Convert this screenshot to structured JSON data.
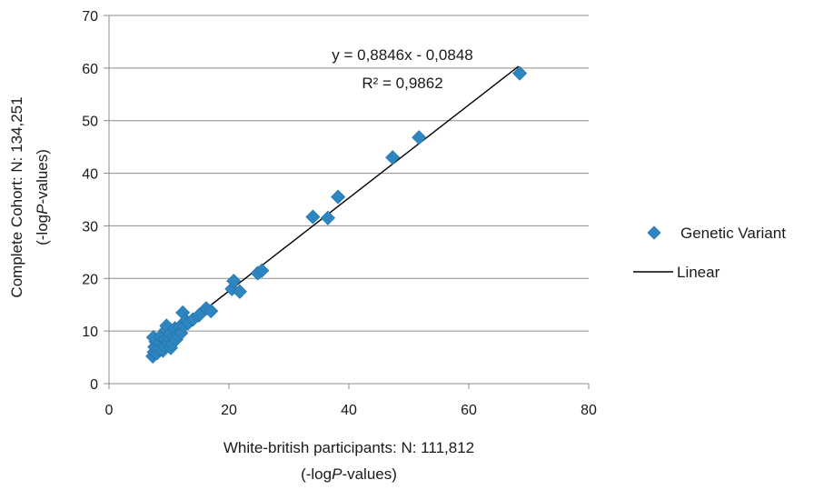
{
  "chart_data": {
    "type": "scatter",
    "xlabel_line1": "White-british participants: N: 111,812",
    "xlabel_line2_pre": "(-log",
    "xlabel_line2_italic": "P",
    "xlabel_line2_post": "-values)",
    "ylabel_line1": "Complete Cohort: N: 134,251",
    "ylabel_line2_pre": "(-log",
    "ylabel_line2_italic": "P",
    "ylabel_line2_post": "-values)",
    "xlim": [
      0,
      80
    ],
    "ylim": [
      0,
      70
    ],
    "xticks": [
      "0",
      "20",
      "40",
      "60",
      "80"
    ],
    "yticks": [
      "0",
      "10",
      "20",
      "30",
      "40",
      "50",
      "60",
      "70"
    ],
    "grid": "horizontal",
    "legend_position": "right",
    "series": [
      {
        "name": "Genetic Variant",
        "color": "#2e86c1",
        "marker": "diamond",
        "points": [
          [
            7.3,
            5.2
          ],
          [
            7.5,
            6.0
          ],
          [
            7.6,
            7.0
          ],
          [
            7.8,
            8.0
          ],
          [
            7.4,
            8.8
          ],
          [
            8.0,
            5.8
          ],
          [
            8.2,
            6.5
          ],
          [
            8.5,
            7.8
          ],
          [
            8.6,
            9.0
          ],
          [
            9.0,
            6.3
          ],
          [
            9.2,
            7.2
          ],
          [
            9.3,
            8.5
          ],
          [
            9.5,
            10.2
          ],
          [
            9.6,
            11.0
          ],
          [
            9.8,
            7.5
          ],
          [
            10.0,
            8.8
          ],
          [
            10.2,
            9.5
          ],
          [
            10.3,
            6.8
          ],
          [
            10.5,
            7.6
          ],
          [
            10.8,
            9.0
          ],
          [
            11.0,
            10.5
          ],
          [
            11.2,
            8.4
          ],
          [
            11.5,
            9.3
          ],
          [
            11.8,
            10.8
          ],
          [
            12.0,
            9.6
          ],
          [
            12.3,
            13.5
          ],
          [
            12.5,
            11.0
          ],
          [
            12.8,
            12.0
          ],
          [
            13.2,
            11.5
          ],
          [
            14.0,
            12.2
          ],
          [
            15.0,
            13.0
          ],
          [
            16.2,
            14.3
          ],
          [
            17.0,
            13.8
          ],
          [
            20.5,
            18.0
          ],
          [
            20.8,
            19.5
          ],
          [
            21.8,
            17.5
          ],
          [
            24.8,
            21.0
          ],
          [
            25.5,
            21.5
          ],
          [
            34.0,
            31.7
          ],
          [
            36.5,
            31.5
          ],
          [
            38.2,
            35.5
          ],
          [
            47.3,
            43.0
          ],
          [
            51.7,
            46.8
          ],
          [
            68.5,
            59.0
          ]
        ]
      }
    ],
    "trendline": {
      "name": "Linear",
      "color": "#000000",
      "slope": 0.8846,
      "intercept": -0.0848,
      "x_range": [
        7.3,
        68.3
      ],
      "equation": "y = 0,8846x - 0,0848",
      "r2": "R² = 0,9862"
    }
  }
}
